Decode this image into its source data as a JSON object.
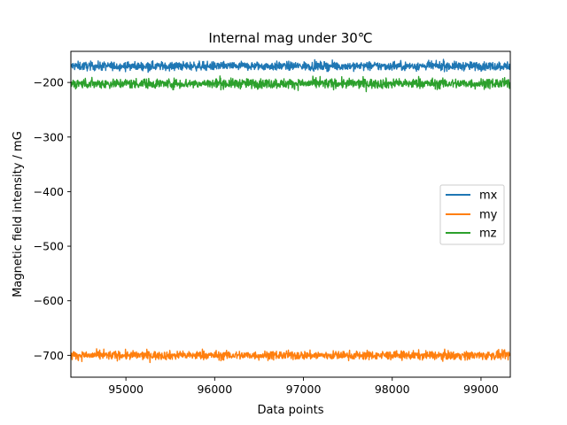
{
  "chart_data": {
    "type": "line",
    "title": "Internal mag under 30℃",
    "xlabel": "Data points",
    "ylabel": "Magnetic field intensity / mG",
    "xlim": [
      94380,
      99330
    ],
    "ylim": [
      -740,
      -143
    ],
    "xticks": [
      95000,
      96000,
      97000,
      98000,
      99000
    ],
    "xtick_labels": [
      "95000",
      "96000",
      "97000",
      "98000",
      "99000"
    ],
    "yticks": [
      -200,
      -300,
      -400,
      -500,
      -600,
      -700
    ],
    "ytick_labels": [
      "−200",
      "−300",
      "−400",
      "−500",
      "−600",
      "−700"
    ],
    "grid": false,
    "legend_position": "center-right",
    "series": [
      {
        "name": "mx",
        "color": "#1f77b4",
        "mean": -170,
        "noise": 4,
        "x_start": 94380,
        "x_end": 99330
      },
      {
        "name": "my",
        "color": "#ff7f0e",
        "mean": -700,
        "noise": 4,
        "x_start": 94380,
        "x_end": 99330
      },
      {
        "name": "mz",
        "color": "#2ca02c",
        "mean": -202,
        "noise": 4.5,
        "x_start": 94380,
        "x_end": 99330
      }
    ]
  }
}
